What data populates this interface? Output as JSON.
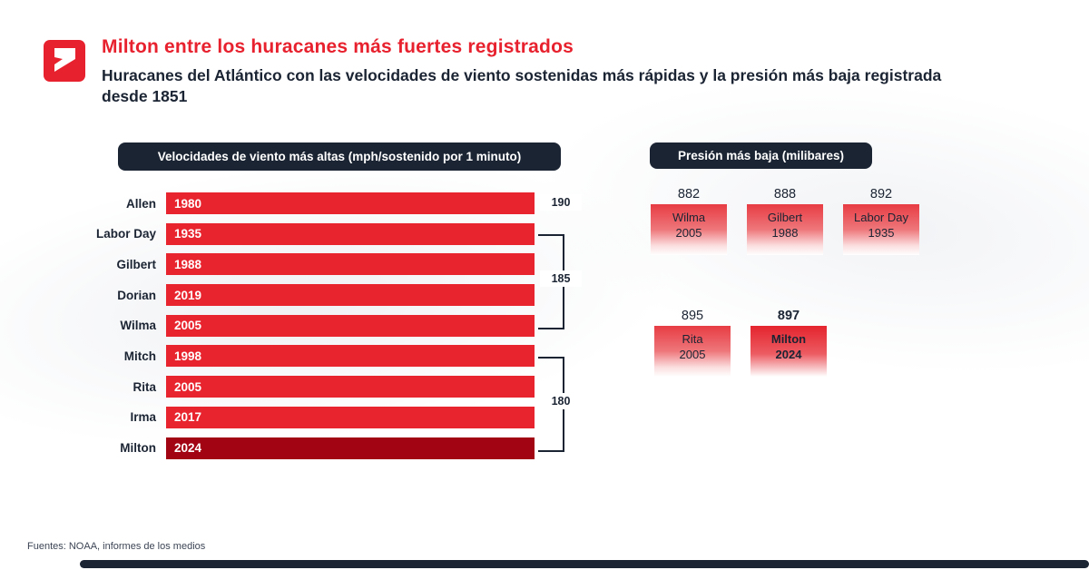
{
  "header": {
    "title": "Milton entre los huracanes más fuertes registrados",
    "subtitle": "Huracanes del Atlántico con las velocidades de viento sostenidas más rápidas y la presión más baja registrada desde 1851"
  },
  "wind_chart": {
    "header": "Velocidades de viento más altas (mph/sostenido por 1 minuto)",
    "rows": [
      {
        "name": "Allen",
        "year": "1980",
        "highlight": false
      },
      {
        "name": "Labor Day",
        "year": "1935",
        "highlight": false
      },
      {
        "name": "Gilbert",
        "year": "1988",
        "highlight": false
      },
      {
        "name": "Dorian",
        "year": "2019",
        "highlight": false
      },
      {
        "name": "Wilma",
        "year": "2005",
        "highlight": false
      },
      {
        "name": "Mitch",
        "year": "1998",
        "highlight": false
      },
      {
        "name": "Rita",
        "year": "2005",
        "highlight": false
      },
      {
        "name": "Irma",
        "year": "2017",
        "highlight": false
      },
      {
        "name": "Milton",
        "year": "2024",
        "highlight": true
      }
    ],
    "brackets": [
      {
        "label": "190",
        "from": 0,
        "to": 0
      },
      {
        "label": "185",
        "from": 1,
        "to": 4
      },
      {
        "label": "180",
        "from": 5,
        "to": 8
      }
    ]
  },
  "pressure_chart": {
    "header": "Presión más baja (milibares)",
    "cards": [
      {
        "value": "882",
        "name": "Wilma",
        "year": "2005",
        "highlight": false
      },
      {
        "value": "888",
        "name": "Gilbert",
        "year": "1988",
        "highlight": false
      },
      {
        "value": "892",
        "name": "Labor Day",
        "year": "1935",
        "highlight": false
      },
      {
        "value": "895",
        "name": "Rita",
        "year": "2005",
        "highlight": false
      },
      {
        "value": "897",
        "name": "Milton",
        "year": "2024",
        "highlight": true
      }
    ]
  },
  "footer": {
    "source": "Fuentes: NOAA, informes de los medios"
  },
  "colors": {
    "accent_red": "#e8212e",
    "milton_dark_red": "#a30413",
    "dark_navy": "#1b2433",
    "background": "#ffffff"
  },
  "chart_data": [
    {
      "type": "bar",
      "title": "Velocidades de viento más altas (mph/sostenido por 1 minuto)",
      "categories": [
        "Allen 1980",
        "Labor Day 1935",
        "Gilbert 1988",
        "Dorian 2019",
        "Wilma 2005",
        "Mitch 1998",
        "Rita 2005",
        "Irma 2017",
        "Milton 2024"
      ],
      "values": [
        190,
        185,
        185,
        185,
        185,
        180,
        180,
        180,
        180
      ],
      "xlabel": "",
      "ylabel": "mph sostenido por 1 minuto",
      "orientation": "horizontal",
      "highlight_category": "Milton 2024"
    },
    {
      "type": "bar",
      "title": "Presión más baja (milibares)",
      "categories": [
        "Wilma 2005",
        "Gilbert 1988",
        "Labor Day 1935",
        "Rita 2005",
        "Milton 2024"
      ],
      "values": [
        882,
        888,
        892,
        895,
        897
      ],
      "xlabel": "",
      "ylabel": "milibares",
      "highlight_category": "Milton 2024"
    }
  ]
}
